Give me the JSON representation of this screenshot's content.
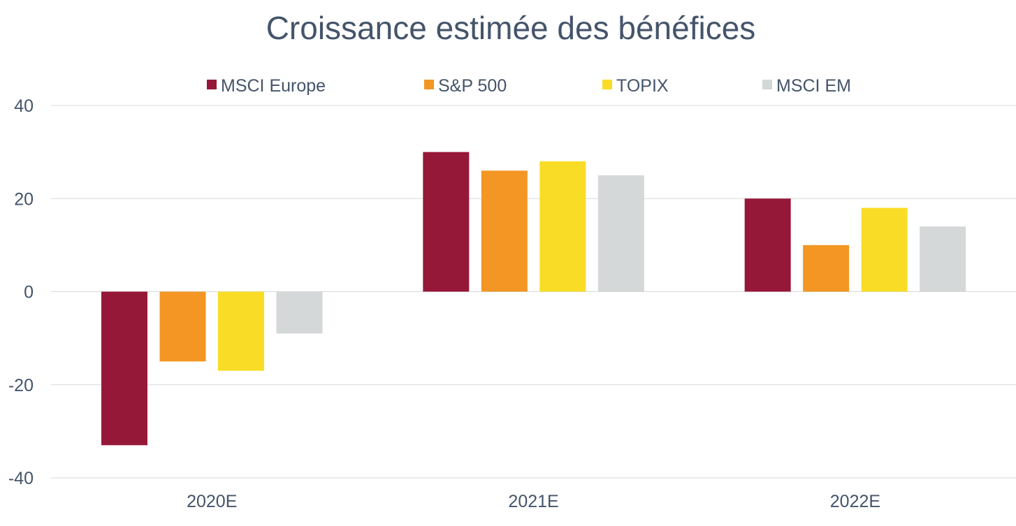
{
  "chart_data": {
    "type": "bar",
    "title": "Croissance estimée des bénéfices",
    "xlabel": "",
    "ylabel": "",
    "categories": [
      "2020E",
      "2021E",
      "2022E"
    ],
    "series": [
      {
        "name": "MSCI Europe",
        "color": "#961838",
        "values": [
          -33,
          30,
          20
        ]
      },
      {
        "name": "S&P 500",
        "color": "#f39624",
        "values": [
          -15,
          26,
          10
        ]
      },
      {
        "name": "TOPIX",
        "color": "#f9dc26",
        "values": [
          -17,
          28,
          18
        ]
      },
      {
        "name": "MSCI EM",
        "color": "#d5d8d8",
        "values": [
          -9,
          25,
          14
        ]
      }
    ],
    "ylim": [
      -40,
      40
    ],
    "yticks": [
      40,
      20,
      0,
      -20,
      -40
    ],
    "ytick_labels": [
      "40",
      "20",
      "0",
      "-20",
      "-40"
    ],
    "grid": true,
    "legend_position": "top",
    "text_color": "#44546a",
    "grid_color": "#d9d9d9"
  }
}
